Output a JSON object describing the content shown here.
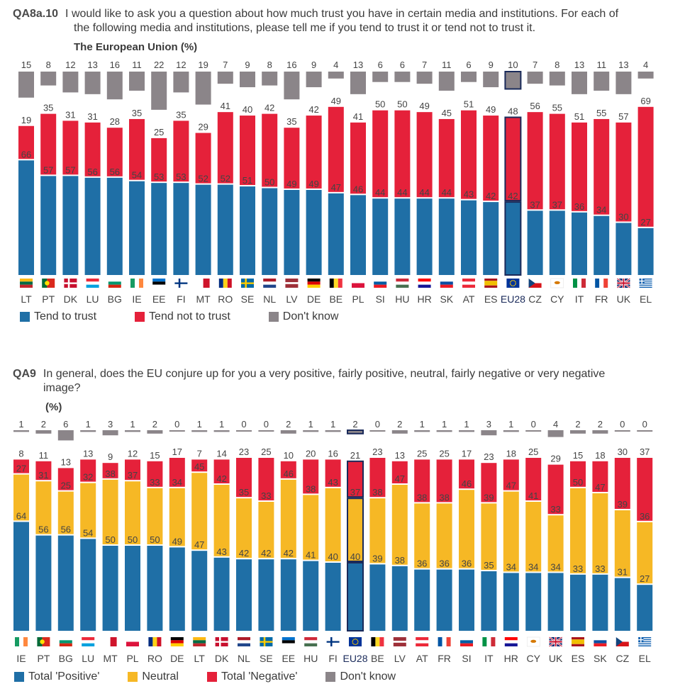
{
  "chart_data": [
    {
      "type": "bar",
      "id": "qa8a10",
      "question_id": "QA8a.10",
      "question_line1": "I would like to ask you a question about how much trust you have in certain media and institutions. For each of",
      "question_line2": "the following media and institutions, please tell me if you tend to trust it or tend not to trust it.",
      "title": "The European Union",
      "unit": "(%)",
      "highlight": "EU28",
      "categories": [
        "LT",
        "PT",
        "DK",
        "LU",
        "BG",
        "IE",
        "EE",
        "FI",
        "MT",
        "RO",
        "SE",
        "NL",
        "LV",
        "DE",
        "BE",
        "PL",
        "SI",
        "HU",
        "HR",
        "SK",
        "AT",
        "ES",
        "EU28",
        "CZ",
        "CY",
        "IT",
        "FR",
        "UK",
        "EL"
      ],
      "series": [
        {
          "name": "Tend to trust",
          "color": "#1f6fa6",
          "values": [
            66,
            57,
            57,
            56,
            56,
            54,
            53,
            53,
            52,
            52,
            51,
            50,
            49,
            49,
            47,
            46,
            44,
            44,
            44,
            44,
            43,
            42,
            42,
            37,
            37,
            36,
            34,
            30,
            27
          ]
        },
        {
          "name": "Tend not to trust",
          "color": "#e5213a",
          "values": [
            19,
            35,
            31,
            31,
            28,
            35,
            25,
            35,
            29,
            41,
            40,
            42,
            35,
            42,
            49,
            41,
            50,
            50,
            49,
            45,
            51,
            49,
            48,
            56,
            55,
            51,
            55,
            57,
            69
          ]
        },
        {
          "name": "Don't know",
          "color": "#8b8589",
          "values": [
            15,
            8,
            12,
            13,
            16,
            11,
            22,
            12,
            19,
            7,
            9,
            8,
            16,
            9,
            4,
            13,
            6,
            6,
            7,
            11,
            6,
            9,
            10,
            7,
            8,
            13,
            11,
            13,
            4
          ]
        }
      ],
      "legend": [
        "Tend to trust",
        "Tend not to trust",
        "Don't know"
      ]
    },
    {
      "type": "bar",
      "id": "qa9",
      "question_id": "QA9",
      "question_line1": "In general, does the EU conjure up for you a very positive, fairly positive, neutral, fairly negative or very negative",
      "question_line2": "image?",
      "title": "",
      "unit": "(%)",
      "highlight": "EU28",
      "categories": [
        "IE",
        "PT",
        "BG",
        "LU",
        "MT",
        "PL",
        "RO",
        "DE",
        "LT",
        "DK",
        "NL",
        "SE",
        "EE",
        "HU",
        "FI",
        "EU28",
        "BE",
        "LV",
        "AT",
        "FR",
        "SI",
        "IT",
        "HR",
        "CY",
        "UK",
        "ES",
        "SK",
        "CZ",
        "EL"
      ],
      "series": [
        {
          "name": "Total 'Positive'",
          "color": "#1f6fa6",
          "values": [
            64,
            56,
            56,
            54,
            50,
            50,
            50,
            49,
            47,
            43,
            42,
            42,
            42,
            41,
            40,
            40,
            39,
            38,
            36,
            36,
            36,
            35,
            34,
            34,
            34,
            33,
            33,
            31,
            27
          ]
        },
        {
          "name": "Neutral",
          "color": "#f6b825",
          "values": [
            27,
            31,
            25,
            32,
            38,
            37,
            33,
            34,
            45,
            42,
            35,
            33,
            46,
            38,
            43,
            37,
            38,
            47,
            38,
            38,
            46,
            39,
            47,
            41,
            33,
            50,
            47,
            39,
            36
          ]
        },
        {
          "name": "Total 'Negative'",
          "color": "#e5213a",
          "values": [
            8,
            11,
            13,
            13,
            9,
            12,
            15,
            17,
            7,
            14,
            23,
            25,
            10,
            20,
            16,
            21,
            23,
            13,
            25,
            25,
            17,
            23,
            18,
            25,
            29,
            15,
            18,
            30,
            37
          ]
        },
        {
          "name": "Don't know",
          "color": "#8b8589",
          "values": [
            1,
            2,
            6,
            1,
            3,
            1,
            2,
            0,
            1,
            1,
            0,
            0,
            2,
            1,
            1,
            2,
            0,
            2,
            1,
            1,
            1,
            3,
            1,
            0,
            4,
            2,
            2,
            0,
            0
          ]
        }
      ],
      "legend": [
        "Total 'Positive'",
        "Neutral",
        "Total 'Negative'",
        "Don't know"
      ]
    }
  ]
}
